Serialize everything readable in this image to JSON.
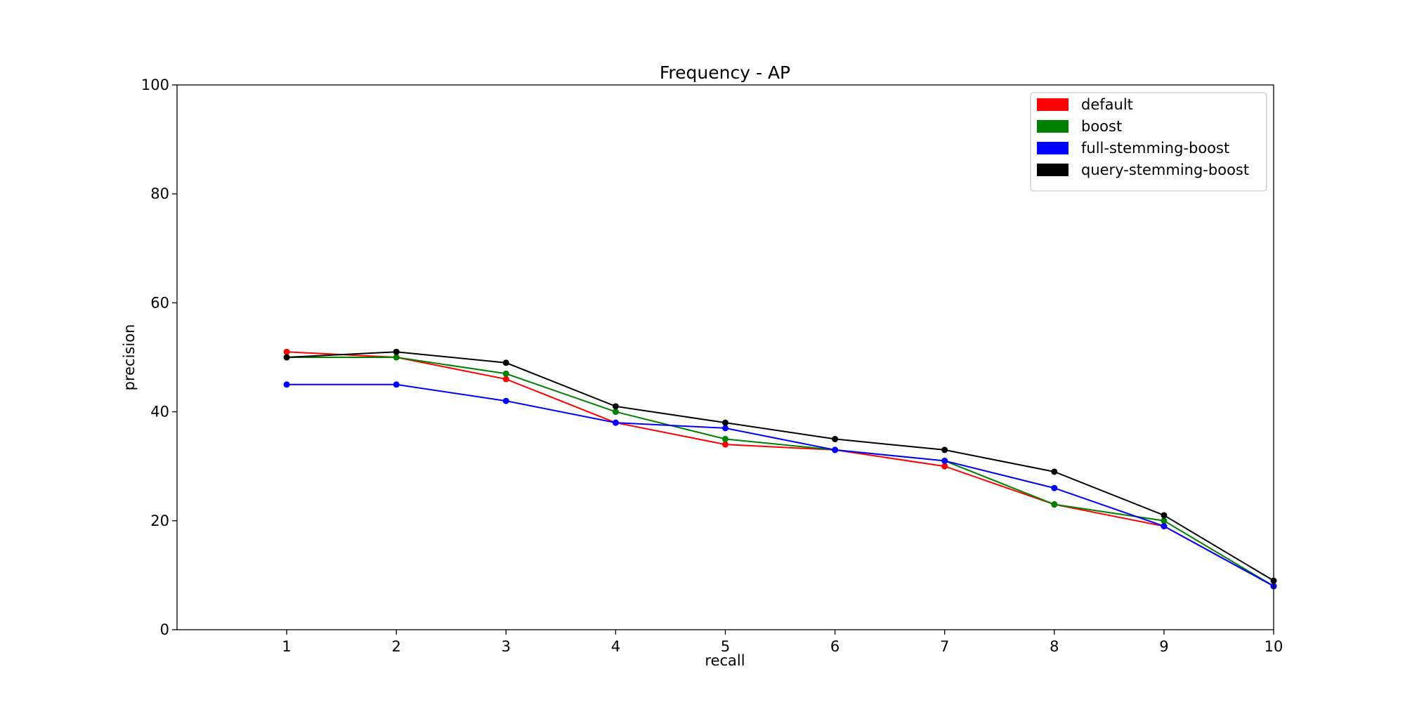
{
  "chart_data": {
    "type": "line",
    "title": "Frequency - AP",
    "xlabel": "recall",
    "ylabel": "precision",
    "xlim": [
      0,
      10
    ],
    "ylim": [
      0,
      100
    ],
    "x": [
      1,
      2,
      3,
      4,
      5,
      6,
      7,
      8,
      9,
      10
    ],
    "xticks": [
      1,
      2,
      3,
      4,
      5,
      6,
      7,
      8,
      9,
      10
    ],
    "yticks": [
      0,
      20,
      40,
      60,
      80,
      100
    ],
    "grid": false,
    "legend_position": "top-right",
    "markers": true,
    "series": [
      {
        "name": "default",
        "color": "#ff0000",
        "values": [
          51,
          50,
          46,
          38,
          34,
          33,
          30,
          23,
          19,
          8
        ]
      },
      {
        "name": "boost",
        "color": "#008000",
        "values": [
          50,
          50,
          47,
          40,
          35,
          33,
          31,
          23,
          20,
          8
        ]
      },
      {
        "name": "full-stemming-boost",
        "color": "#0000ff",
        "values": [
          45,
          45,
          42,
          38,
          37,
          33,
          31,
          26,
          19,
          8
        ]
      },
      {
        "name": "query-stemming-boost",
        "color": "#000000",
        "values": [
          50,
          51,
          49,
          41,
          38,
          35,
          33,
          29,
          21,
          9
        ]
      }
    ]
  }
}
